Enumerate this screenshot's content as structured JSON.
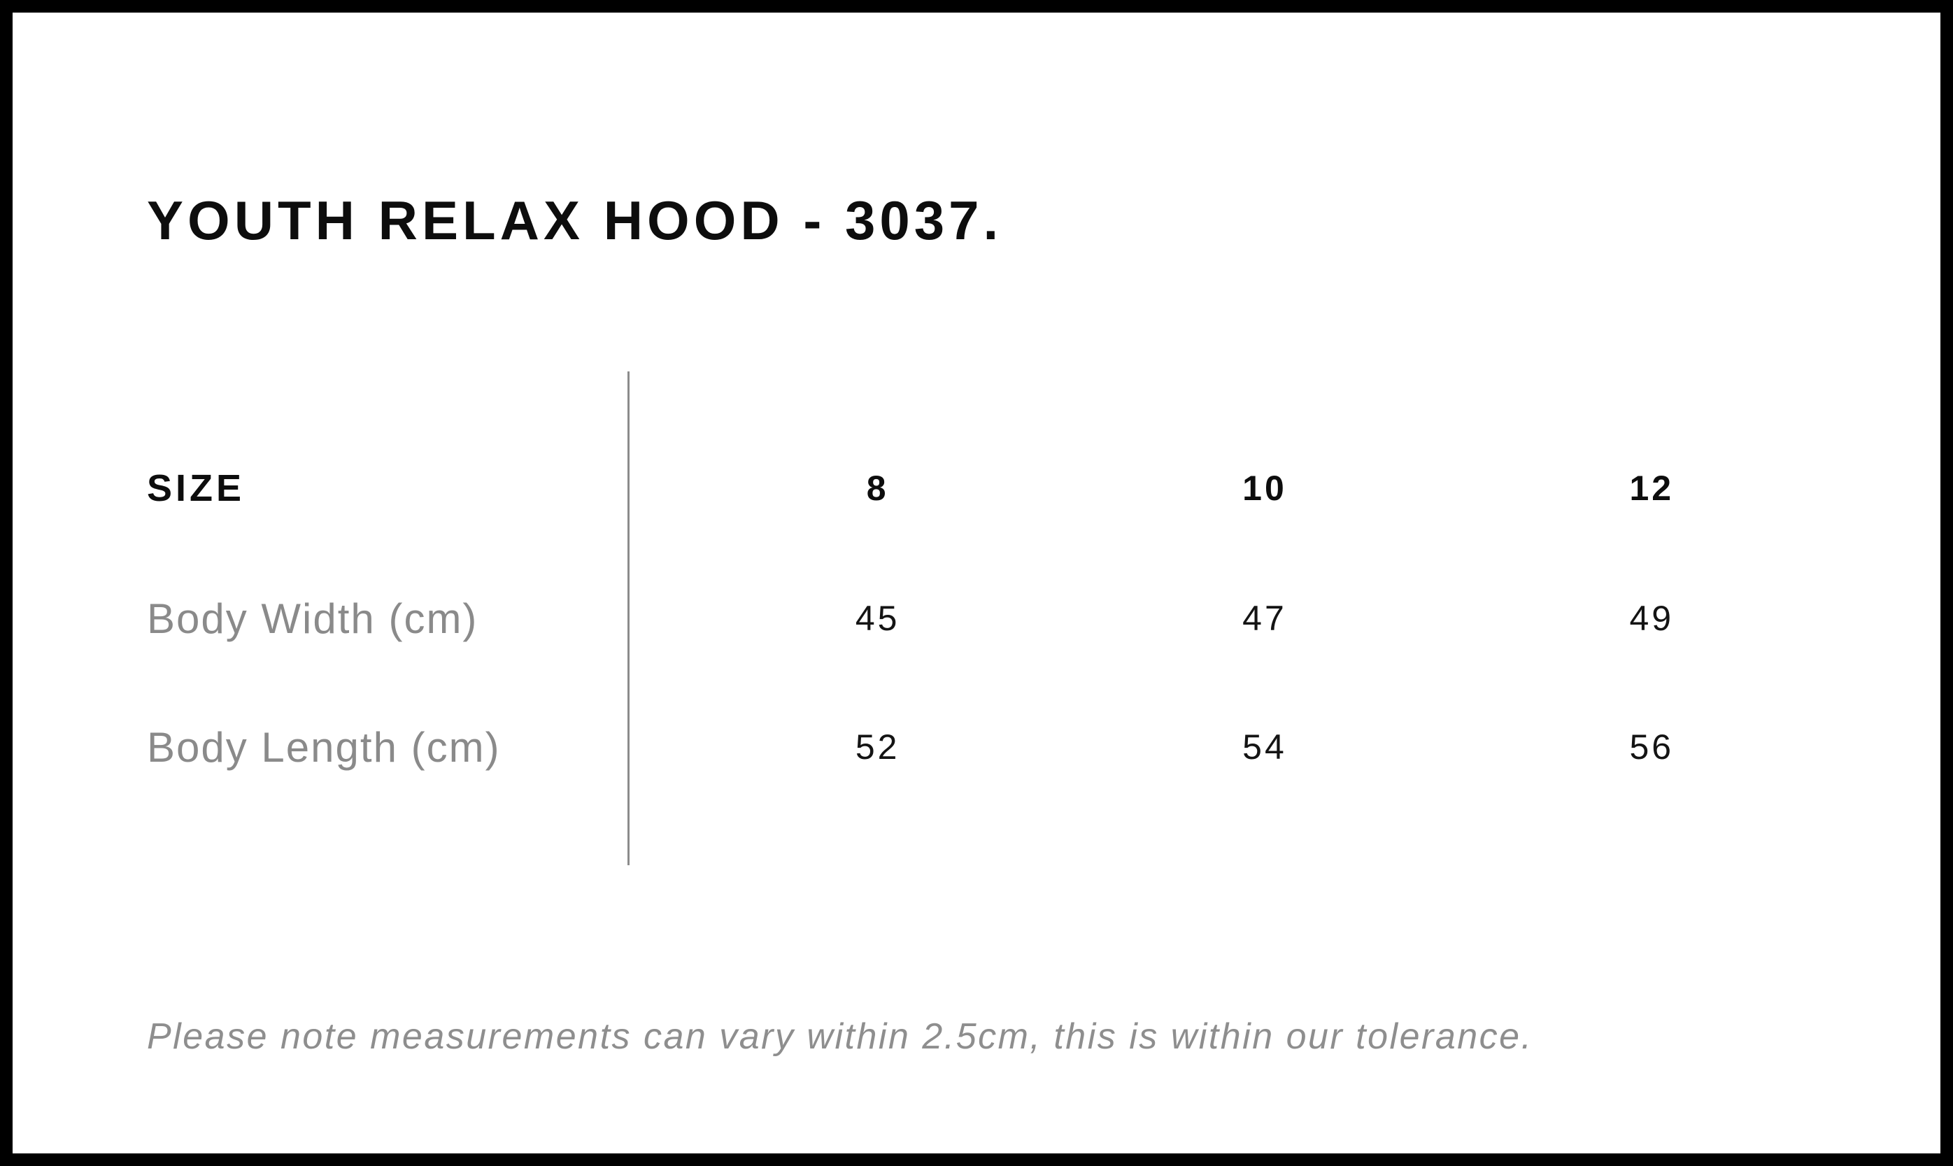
{
  "page": {
    "title": "YOUTH RELAX HOOD - 3037.",
    "note": "Please note measurements can vary within 2.5cm, this is within our tolerance."
  },
  "size_chart": {
    "header_label": "SIZE",
    "sizes": [
      "8",
      "10",
      "12"
    ],
    "rows": [
      {
        "label": "Body Width (cm)",
        "values": [
          "45",
          "47",
          "49"
        ]
      },
      {
        "label": "Body Length (cm)",
        "values": [
          "52",
          "54",
          "56"
        ]
      }
    ]
  },
  "colors": {
    "background": "#ffffff",
    "frame": "#000000",
    "text_primary": "#0d0d0d",
    "text_muted": "#8a8a8a",
    "divider": "#8c8c8c"
  }
}
